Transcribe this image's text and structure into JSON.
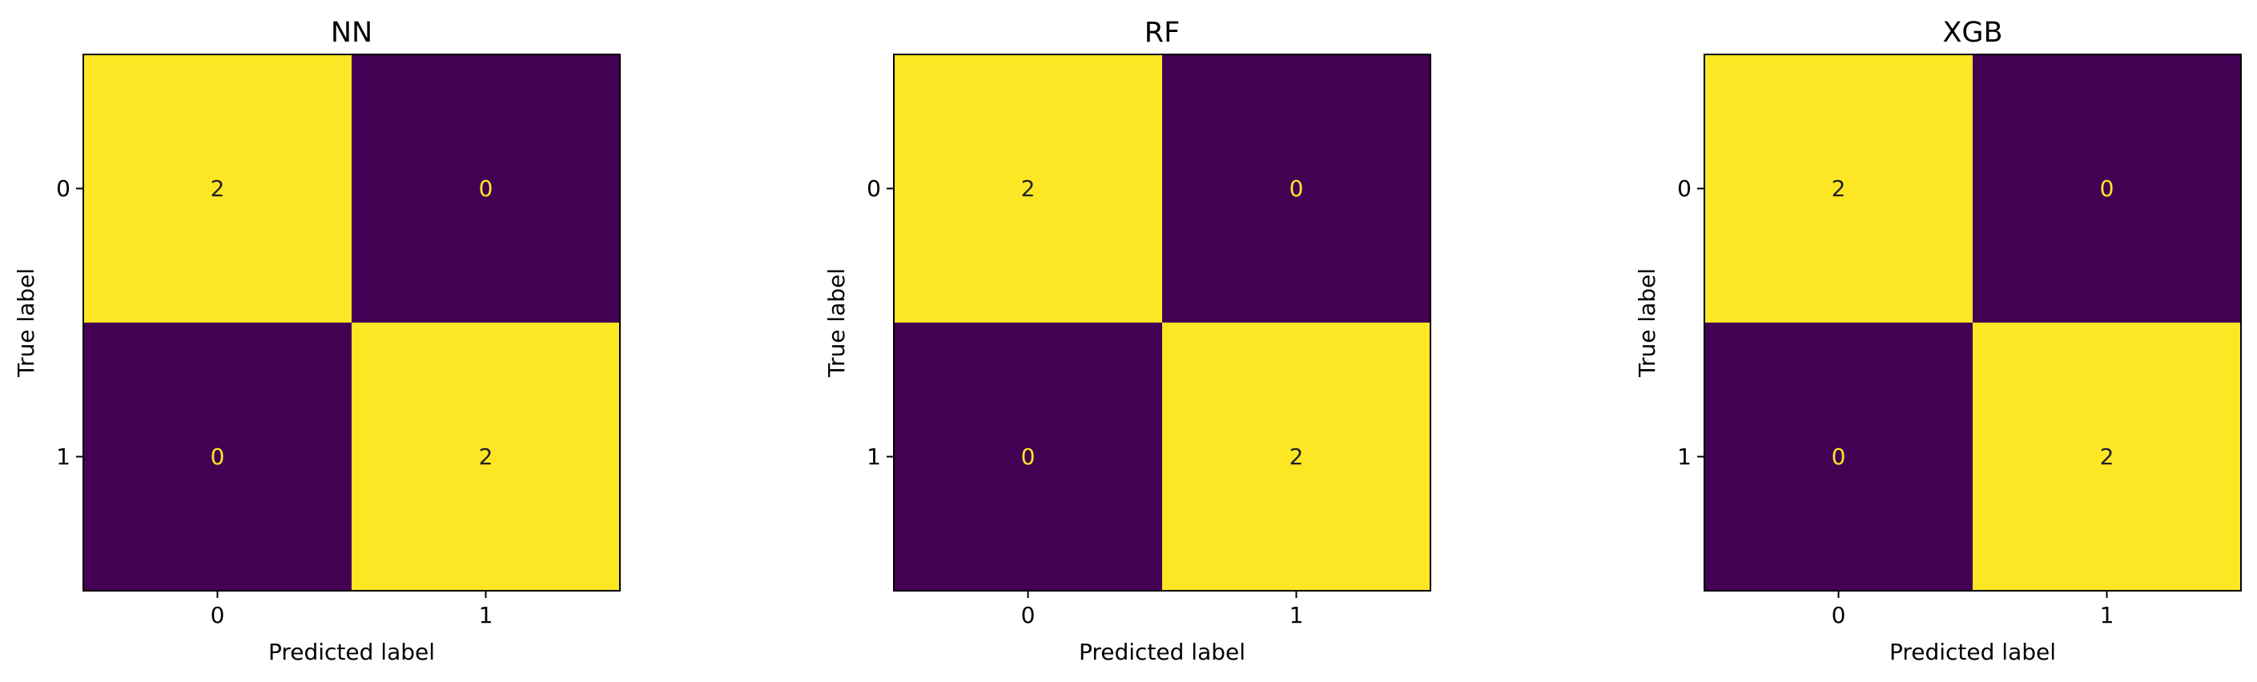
{
  "chart_data": [
    {
      "type": "heatmap",
      "title": "NN",
      "xlabel": "Predicted label",
      "ylabel": "True label",
      "x_categories": [
        "0",
        "1"
      ],
      "y_categories": [
        "0",
        "1"
      ],
      "values": [
        [
          2,
          0
        ],
        [
          0,
          2
        ]
      ],
      "vmin": 0,
      "vmax": 2,
      "colormap": "viridis",
      "colorbar": false,
      "grid": false
    },
    {
      "type": "heatmap",
      "title": "RF",
      "xlabel": "Predicted label",
      "ylabel": "True label",
      "x_categories": [
        "0",
        "1"
      ],
      "y_categories": [
        "0",
        "1"
      ],
      "values": [
        [
          2,
          0
        ],
        [
          0,
          2
        ]
      ],
      "vmin": 0,
      "vmax": 2,
      "colormap": "viridis",
      "colorbar": false,
      "grid": false
    },
    {
      "type": "heatmap",
      "title": "XGB",
      "xlabel": "Predicted label",
      "ylabel": "True label",
      "x_categories": [
        "0",
        "1"
      ],
      "y_categories": [
        "0",
        "1"
      ],
      "values": [
        [
          2,
          0
        ],
        [
          0,
          2
        ]
      ],
      "vmin": 0,
      "vmax": 2,
      "colormap": "viridis",
      "colorbar": false,
      "grid": false
    }
  ],
  "colors": {
    "high": "#fde725",
    "low": "#440154",
    "frame": "#000000"
  }
}
